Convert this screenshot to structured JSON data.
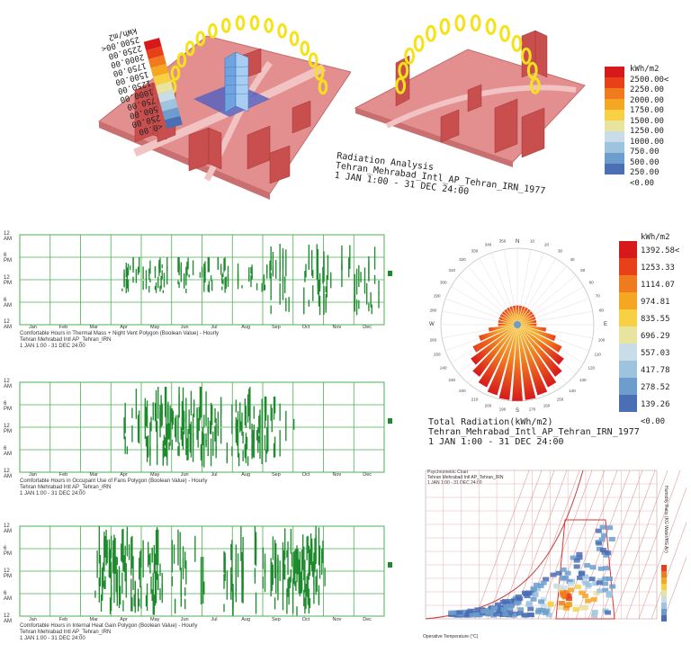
{
  "scene_left": {
    "legend_values": [
      "2500.00<",
      "2250.00",
      "2000.00",
      "1750.00",
      "1500.00",
      "1250.00",
      "1000.00",
      "750.00",
      "500.00",
      "250.00",
      "<0.00"
    ],
    "unit": "kWh/m2"
  },
  "scene_right": {
    "legend_unit": "kWh/m2",
    "legend_values": [
      "2500.00<",
      "2250.00",
      "2000.00",
      "1750.00",
      "1500.00",
      "1250.00",
      "1000.00",
      "750.00",
      "500.00",
      "250.00",
      "<0.00"
    ],
    "caption": [
      "Radiation Analysis",
      "Tehran_Mehrabad_Intl_AP_Tehran_IRN_1977",
      "1 JAN 1:00 - 31 DEC 24:00"
    ]
  },
  "charts": [
    {
      "y_ticks": [
        "12 AM",
        "6 PM",
        "12 PM",
        "6 AM",
        "12 AM"
      ],
      "months": [
        "Jan",
        "Feb",
        "Mar",
        "Apr",
        "May",
        "Jun",
        "Jul",
        "Aug",
        "Sep",
        "Oct",
        "Nov",
        "Dec"
      ],
      "caption": [
        "Comfortable Hours in Thermal Mass + Night Vent Polygon (Boolean Value) - Hourly",
        "Tehran Mehrabad Intl AP_Tehran_IRN",
        "1 JAN 1:00 - 31 DEC 24:00"
      ]
    },
    {
      "y_ticks": [
        "12 AM",
        "6 PM",
        "12 PM",
        "6 AM",
        "12 AM"
      ],
      "months": [
        "Jan",
        "Feb",
        "Mar",
        "Apr",
        "May",
        "Jun",
        "Jul",
        "Aug",
        "Sep",
        "Oct",
        "Nov",
        "Dec"
      ],
      "caption": [
        "Comfortable Hours in Occupant Use of Fans Polygon (Boolean Value) - Hourly",
        "Tehran Mehrabad Intl AP_Tehran_IRN",
        "1 JAN 1:00 - 31 DEC 24:00"
      ]
    },
    {
      "y_ticks": [
        "12 AM",
        "6 PM",
        "12 PM",
        "6 AM",
        "12 AM"
      ],
      "months": [
        "Jan",
        "Feb",
        "Mar",
        "Apr",
        "May",
        "Jun",
        "Jul",
        "Aug",
        "Sep",
        "Oct",
        "Nov",
        "Dec"
      ],
      "caption": [
        "Comfortable Hours in Internal Heat Gain Polygon (Boolean Value) - Hourly",
        "Tehran Mehrabad Intl AP_Tehran_IRN",
        "1 JAN 1:00 - 31 DEC 24:00"
      ]
    }
  ],
  "rose": {
    "legend_unit": "kWh/m2",
    "legend_values": [
      "1392.58<",
      "1253.33",
      "1114.07",
      "974.81",
      "835.55",
      "696.29",
      "557.03",
      "417.78",
      "278.52",
      "139.26",
      "<0.00"
    ],
    "caption": [
      "Total Radiation(kWh/m2)",
      "Tehran_Mehrabad_Intl_AP_Tehran_IRN_1977",
      "1 JAN 1:00 - 31 DEC 24:00"
    ],
    "directions": {
      "n": "N",
      "e": "E",
      "s": "S",
      "w": "W"
    }
  },
  "psychro": {
    "caption": [
      "Psychrometric Chart",
      "Tehran Mehrabad Intl AP_Tehran_IRN",
      "1 JAN 1:00 - 31 DEC 24:00"
    ],
    "xlabel": "Operative Temperature (°C)",
    "ylabel": "Humidity Ratio (KG Water/KG Air)"
  },
  "colors": {
    "legend_ramp": [
      "#d7191c",
      "#e8411a",
      "#f07a1e",
      "#f5a623",
      "#f7d046",
      "#e9e3a0",
      "#c8dde8",
      "#9dc3df",
      "#6d9dcc",
      "#4a6fb5"
    ],
    "green": "#1e8a2e",
    "grid": "#4caf50",
    "site": "#e89090"
  }
}
